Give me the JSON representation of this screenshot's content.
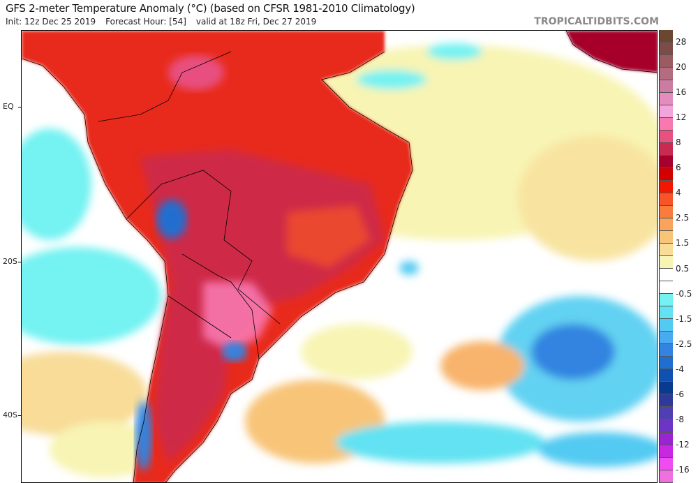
{
  "header": {
    "title": "GFS 2-meter Temperature Anomaly (°C) (based on CFSR 1981-2010 Climatology)",
    "init": "Init: 12z Dec 25 2019",
    "forecast_hour": "Forecast Hour: [54]",
    "valid": "valid at 18z Fri, Dec 27 2019",
    "watermark": "TROPICALTIDBITS.COM"
  },
  "map": {
    "lat_labels": [
      "EQ",
      "20S",
      "40S"
    ]
  },
  "colorbar": {
    "labels": [
      "28",
      "20",
      "16",
      "12",
      "8",
      "6",
      "4",
      "2.5",
      "1.5",
      "0.5",
      "-0.5",
      "-1.5",
      "-2.5",
      "-4",
      "-6",
      "-8",
      "-12",
      "-16"
    ],
    "colors": [
      "#6b4630",
      "#7d4c48",
      "#9a5c62",
      "#b46c80",
      "#cc7ca0",
      "#e48cbe",
      "#f4a4dc",
      "#f878b0",
      "#e85080",
      "#c82a52",
      "#a6002c",
      "#d20000",
      "#f01800",
      "#f85428",
      "#f87c3c",
      "#f8a45c",
      "#f8c478",
      "#f8dc98",
      "#f8f4b4",
      "#ffffff",
      "#ffffff",
      "#74f2f2",
      "#62e2f2",
      "#52caf2",
      "#48aaf0",
      "#3284e0",
      "#206ed0",
      "#1050b0",
      "#083a90",
      "#2e3a9a",
      "#4e40b2",
      "#6e34c4",
      "#9a24d2",
      "#c828e2",
      "#ee4cf0",
      "#f070e0"
    ]
  }
}
